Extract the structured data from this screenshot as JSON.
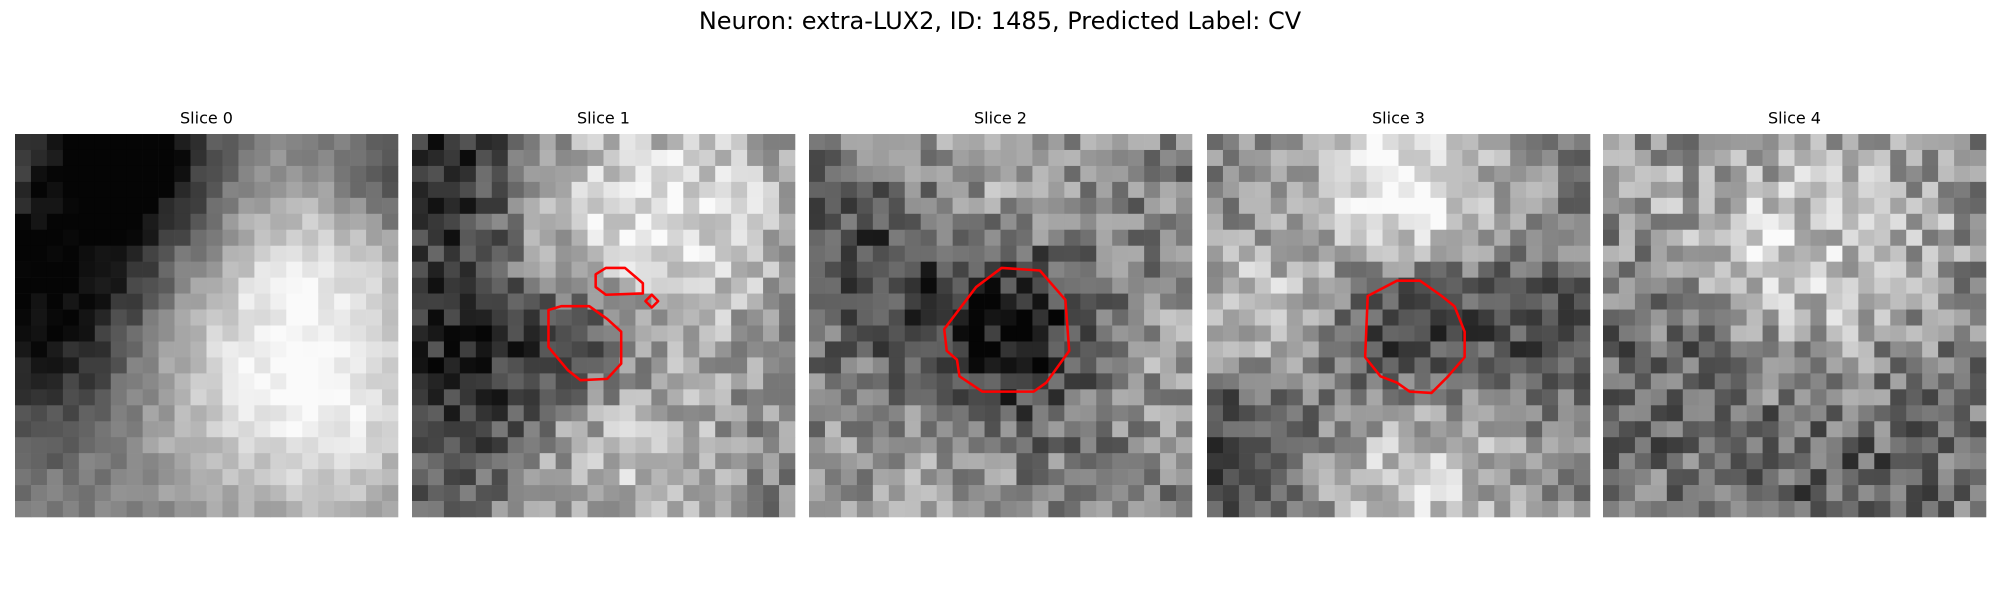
{
  "header": {
    "title": "Neuron: extra-LUX2, ID: 1485, Predicted Label: CV"
  },
  "panels": [
    {
      "title": "Slice 0"
    },
    {
      "title": "Slice 1"
    },
    {
      "title": "Slice 2"
    },
    {
      "title": "Slice 3"
    },
    {
      "title": "Slice 4"
    }
  ]
}
